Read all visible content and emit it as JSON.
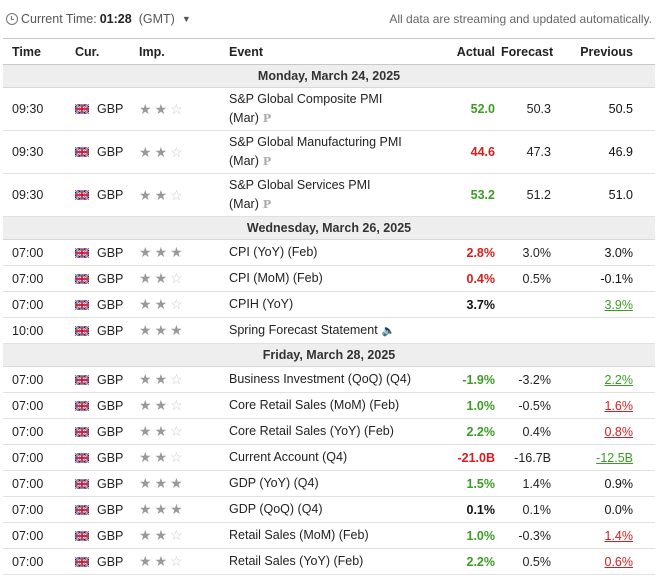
{
  "header": {
    "current_time_label": "Current Time:",
    "current_time": "01:28",
    "timezone": "(GMT)",
    "notice": "All data are streaming and updated automatically."
  },
  "columns": {
    "time": "Time",
    "currency": "Cur.",
    "importance": "Imp.",
    "event": "Event",
    "actual": "Actual",
    "forecast": "Forecast",
    "previous": "Previous"
  },
  "colors": {
    "positive": "#3a9d23",
    "negative": "#d91b1b"
  },
  "days": [
    {
      "label": "Monday, March 24, 2025",
      "events": [
        {
          "time": "09:30",
          "cur": "GBP",
          "imp": 2,
          "event": "S&P Global Composite PMI (Mar)",
          "prelim": "P",
          "actual": "52.0",
          "actual_state": "green",
          "forecast": "50.3",
          "previous": "50.5",
          "previous_state": "plain",
          "tall": true
        },
        {
          "time": "09:30",
          "cur": "GBP",
          "imp": 2,
          "event": "S&P Global Manufacturing PMI (Mar)",
          "prelim": "P",
          "actual": "44.6",
          "actual_state": "red",
          "forecast": "47.3",
          "previous": "46.9",
          "previous_state": "plain",
          "tall": true
        },
        {
          "time": "09:30",
          "cur": "GBP",
          "imp": 2,
          "event": "S&P Global Services PMI (Mar)",
          "prelim": "P",
          "actual": "53.2",
          "actual_state": "green",
          "forecast": "51.2",
          "previous": "51.0",
          "previous_state": "plain",
          "tall": true
        }
      ]
    },
    {
      "label": "Wednesday, March 26, 2025",
      "events": [
        {
          "time": "07:00",
          "cur": "GBP",
          "imp": 3,
          "event": "CPI (YoY) (Feb)",
          "actual": "2.8%",
          "actual_state": "red",
          "forecast": "3.0%",
          "previous": "3.0%",
          "previous_state": "plain"
        },
        {
          "time": "07:00",
          "cur": "GBP",
          "imp": 2,
          "event": "CPI (MoM) (Feb)",
          "actual": "0.4%",
          "actual_state": "red",
          "forecast": "0.5%",
          "previous": "-0.1%",
          "previous_state": "plain"
        },
        {
          "time": "07:00",
          "cur": "GBP",
          "imp": 2,
          "event": "CPIH (YoY)",
          "actual": "3.7%",
          "actual_state": "black",
          "forecast": "",
          "previous": "3.9%",
          "previous_state": "up"
        },
        {
          "time": "10:00",
          "cur": "GBP",
          "imp": 3,
          "event": "Spring Forecast Statement",
          "speaker": true,
          "actual": "",
          "actual_state": "black",
          "forecast": "",
          "previous": "",
          "previous_state": "plain"
        }
      ]
    },
    {
      "label": "Friday, March 28, 2025",
      "events": [
        {
          "time": "07:00",
          "cur": "GBP",
          "imp": 2,
          "event": "Business Investment (QoQ) (Q4)",
          "actual": "-1.9%",
          "actual_state": "green",
          "forecast": "-3.2%",
          "previous": "2.2%",
          "previous_state": "up"
        },
        {
          "time": "07:00",
          "cur": "GBP",
          "imp": 2,
          "event": "Core Retail Sales (MoM) (Feb)",
          "actual": "1.0%",
          "actual_state": "green",
          "forecast": "-0.5%",
          "previous": "1.6%",
          "previous_state": "down"
        },
        {
          "time": "07:00",
          "cur": "GBP",
          "imp": 2,
          "event": "Core Retail Sales (YoY) (Feb)",
          "actual": "2.2%",
          "actual_state": "green",
          "forecast": "0.4%",
          "previous": "0.8%",
          "previous_state": "down"
        },
        {
          "time": "07:00",
          "cur": "GBP",
          "imp": 2,
          "event": "Current Account (Q4)",
          "actual": "-21.0B",
          "actual_state": "red",
          "forecast": "-16.7B",
          "previous": "-12.5B",
          "previous_state": "up"
        },
        {
          "time": "07:00",
          "cur": "GBP",
          "imp": 3,
          "event": "GDP (YoY) (Q4)",
          "actual": "1.5%",
          "actual_state": "green",
          "forecast": "1.4%",
          "previous": "0.9%",
          "previous_state": "plain"
        },
        {
          "time": "07:00",
          "cur": "GBP",
          "imp": 3,
          "event": "GDP (QoQ) (Q4)",
          "actual": "0.1%",
          "actual_state": "black",
          "forecast": "0.1%",
          "previous": "0.0%",
          "previous_state": "plain"
        },
        {
          "time": "07:00",
          "cur": "GBP",
          "imp": 2,
          "event": "Retail Sales (MoM) (Feb)",
          "actual": "1.0%",
          "actual_state": "green",
          "forecast": "-0.3%",
          "previous": "1.4%",
          "previous_state": "down"
        },
        {
          "time": "07:00",
          "cur": "GBP",
          "imp": 2,
          "event": "Retail Sales (YoY) (Feb)",
          "actual": "2.2%",
          "actual_state": "green",
          "forecast": "0.5%",
          "previous": "0.6%",
          "previous_state": "down"
        }
      ]
    }
  ]
}
